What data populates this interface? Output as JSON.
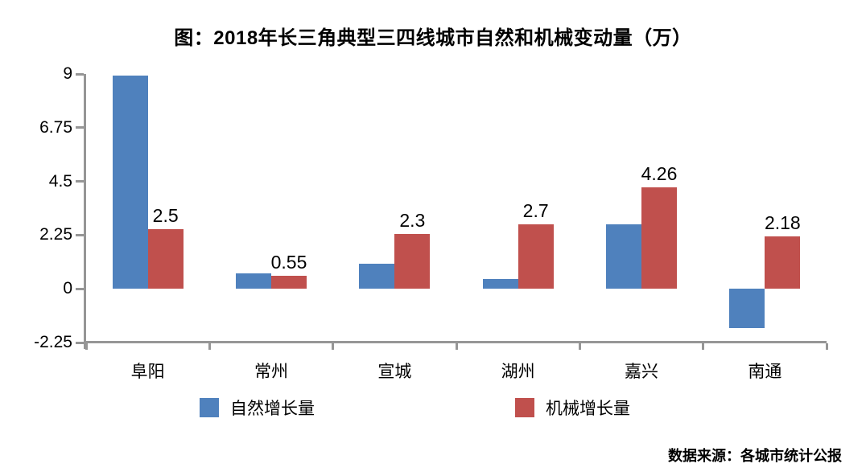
{
  "title": "图：2018年长三角典型三四线城市自然和机械变动量（万）",
  "source": "数据来源：各城市统计公报",
  "colors": {
    "natural_blue": "#4F81BD",
    "mechanical_red": "#C0504D",
    "axis_gray": "#969696",
    "text_black": "#000000",
    "background": "#FFFFFF"
  },
  "legend": {
    "items": [
      {
        "label": "自然增长量",
        "swatch_color": "#4F81BD"
      },
      {
        "label": "机械增长量",
        "swatch_color": "#C0504D"
      }
    ],
    "position": "bottom"
  },
  "chart_data": {
    "type": "bar",
    "title": "图：2018年长三角典型三四线城市自然和机械变动量（万）",
    "categories": [
      "阜阳",
      "常州",
      "宣城",
      "湖州",
      "嘉兴",
      "南通"
    ],
    "series": [
      {
        "name": "自然增长量",
        "color": "#4F81BD",
        "values": [
          8.93,
          0.63,
          1.05,
          0.42,
          2.7,
          -1.65
        ],
        "data_labels_shown": false
      },
      {
        "name": "机械增长量",
        "color": "#C0504D",
        "values": [
          2.5,
          0.55,
          2.3,
          2.7,
          4.26,
          2.18
        ],
        "data_labels_shown": true,
        "data_labels": [
          "2.5",
          "0.55",
          "2.3",
          "2.7",
          "4.26",
          "2.18"
        ]
      }
    ],
    "xlabel": "",
    "ylabel": "",
    "ylim": [
      -2.25,
      9
    ],
    "yticks": [
      "9",
      "6.75",
      "4.5",
      "2.25",
      "0",
      "-2.25"
    ],
    "ytick_values": [
      9,
      6.75,
      4.5,
      2.25,
      0,
      -2.25
    ],
    "grid": false,
    "legend_position": "bottom"
  }
}
